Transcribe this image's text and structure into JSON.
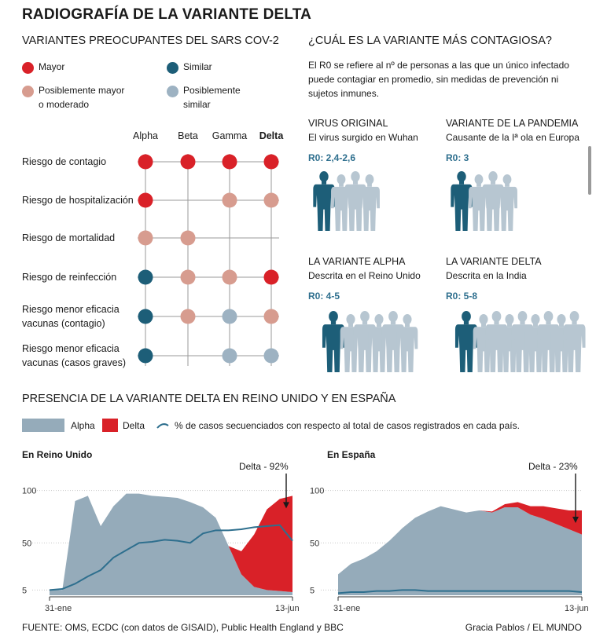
{
  "title": "RADIOGRAFÍA DE LA VARIANTE DELTA",
  "colors": {
    "red": "#d92128",
    "pink": "#d79c8f",
    "dark_blue": "#1d5e78",
    "light_blue": "#9db2c2",
    "alpha_area": "#95abba",
    "line": "#2e6f8e"
  },
  "variants_grid": {
    "title": "VARIANTES PREOCUPANTES DEL SARS COV-2",
    "legend": [
      {
        "label_lines": [
          "Mayor"
        ],
        "color_key": "red"
      },
      {
        "label_lines": [
          "Similar"
        ],
        "color_key": "dark_blue"
      },
      {
        "label_lines": [
          "Posiblemente mayor",
          "o moderado"
        ],
        "color_key": "pink"
      },
      {
        "label_lines": [
          "Posiblemente",
          "similar"
        ],
        "color_key": "light_blue"
      }
    ],
    "columns": [
      "Alpha",
      "Beta",
      "Gamma",
      "Delta"
    ],
    "rows": [
      {
        "label_lines": [
          "Riesgo de contagio"
        ],
        "values": [
          "mayor",
          "mayor",
          "mayor",
          "mayor"
        ]
      },
      {
        "label_lines": [
          "Riesgo de hospitalización"
        ],
        "values": [
          "mayor",
          null,
          "posiblemente_mayor",
          "posiblemente_mayor"
        ]
      },
      {
        "label_lines": [
          "Riesgo de mortalidad"
        ],
        "values": [
          "posiblemente_mayor",
          "posiblemente_mayor",
          null,
          null
        ]
      },
      {
        "label_lines": [
          "Riesgo de reinfección"
        ],
        "values": [
          "similar",
          "posiblemente_mayor",
          "posiblemente_mayor",
          "mayor"
        ]
      },
      {
        "label_lines": [
          "Riesgo menor eficacia",
          "vacunas (contagio)"
        ],
        "values": [
          "similar",
          "posiblemente_mayor",
          "posiblemente_similar",
          "posiblemente_mayor"
        ]
      },
      {
        "label_lines": [
          "Riesgo menor eficacia",
          "vacunas (casos graves)"
        ],
        "values": [
          "similar",
          null,
          "posiblemente_similar",
          "posiblemente_similar"
        ]
      }
    ]
  },
  "contagiousness": {
    "title": "¿CUÁL ES LA VARIANTE MÁS CONTAGIOSA?",
    "description": "El R0 se refiere al nº de personas a las que un único infectado puede contagiar en promedio, sin medidas de prevención ni sujetos inmunes.",
    "variants": [
      {
        "name": "VIRUS ORIGINAL",
        "subtitle": "El virus surgido en Wuhan",
        "r0_label": "R0: 2,4-2,6",
        "people": 3
      },
      {
        "name": "VARIANTE DE LA PANDEMIA",
        "subtitle": "Causante de la Iª ola en Europa",
        "r0_label": "R0: 3",
        "people": 3
      },
      {
        "name": "LA VARIANTE ALPHA",
        "subtitle": "Descrita en el Reino Unido",
        "r0_label": "R0: 4-5",
        "people": 5
      },
      {
        "name": "LA VARIANTE DELTA",
        "subtitle": "Descrita en la India",
        "r0_label": "R0: 5-8",
        "people": 8
      }
    ]
  },
  "presence": {
    "title": "PRESENCIA DE LA VARIANTE DELTA EN REINO UNIDO Y EN ESPAÑA",
    "legend": [
      {
        "label": "Alpha",
        "kind": "area",
        "color_key": "alpha_area"
      },
      {
        "label": "Delta",
        "kind": "area",
        "color_key": "red"
      },
      {
        "label": "% de casos secuenciados con respecto al total de casos registrados en cada país.",
        "kind": "line",
        "color_key": "line"
      }
    ]
  },
  "chart_data": [
    {
      "type": "area",
      "title": "En Reino Unido",
      "x_start_label": "31-ene",
      "x_end_label": "13-jun",
      "ylim": [
        0,
        105
      ],
      "yticks": [
        5,
        50,
        100
      ],
      "annotation": "Delta - 92%",
      "weeks": [
        0,
        1,
        2,
        3,
        4,
        5,
        6,
        7,
        8,
        9,
        10,
        11,
        12,
        13,
        14,
        15,
        16,
        17,
        18,
        19
      ],
      "series": [
        {
          "name": "Alpha",
          "values": [
            5,
            5,
            90,
            95,
            66,
            85,
            97,
            97,
            95,
            94,
            93,
            89,
            84,
            74,
            47,
            20,
            8,
            5,
            4,
            3
          ]
        },
        {
          "name": "Delta",
          "values": [
            0,
            0,
            0,
            0,
            0,
            0,
            0,
            0,
            0,
            0,
            0,
            0,
            0,
            0,
            0,
            22,
            50,
            77,
            88,
            92
          ]
        },
        {
          "name": "% secuenciados",
          "values": [
            5,
            6,
            11,
            18,
            24,
            36,
            43,
            50,
            51,
            53,
            52,
            50,
            59,
            62,
            62,
            63,
            65,
            66,
            67,
            52
          ]
        }
      ]
    },
    {
      "type": "area",
      "title": "En España",
      "x_start_label": "31-ene",
      "x_end_label": "13-jun",
      "ylim": [
        0,
        105
      ],
      "yticks": [
        5,
        50,
        100
      ],
      "annotation": "Delta - 23%",
      "weeks": [
        0,
        1,
        2,
        3,
        4,
        5,
        6,
        7,
        8,
        9,
        10,
        11,
        12,
        13,
        14,
        15,
        16,
        17,
        18,
        19
      ],
      "series": [
        {
          "name": "Alpha",
          "values": [
            20,
            30,
            35,
            42,
            52,
            64,
            74,
            80,
            85,
            82,
            79,
            81,
            79,
            84,
            84,
            77,
            73,
            68,
            63,
            58
          ]
        },
        {
          "name": "Delta",
          "values": [
            0,
            0,
            0,
            0,
            0,
            0,
            0,
            0,
            0,
            0,
            0,
            0,
            1,
            3,
            5,
            8,
            12,
            15,
            18,
            23
          ]
        },
        {
          "name": "% secuenciados",
          "values": [
            2,
            3,
            3,
            4,
            4,
            5,
            5,
            4,
            4,
            4,
            4,
            4,
            4,
            4,
            4,
            4,
            4,
            4,
            4,
            3
          ]
        }
      ]
    }
  ],
  "footer": {
    "source": "FUENTE: OMS, ECDC (con datos de GISAID), Public Health England y BBC",
    "credit": "Gracia Pablos / EL MUNDO"
  }
}
